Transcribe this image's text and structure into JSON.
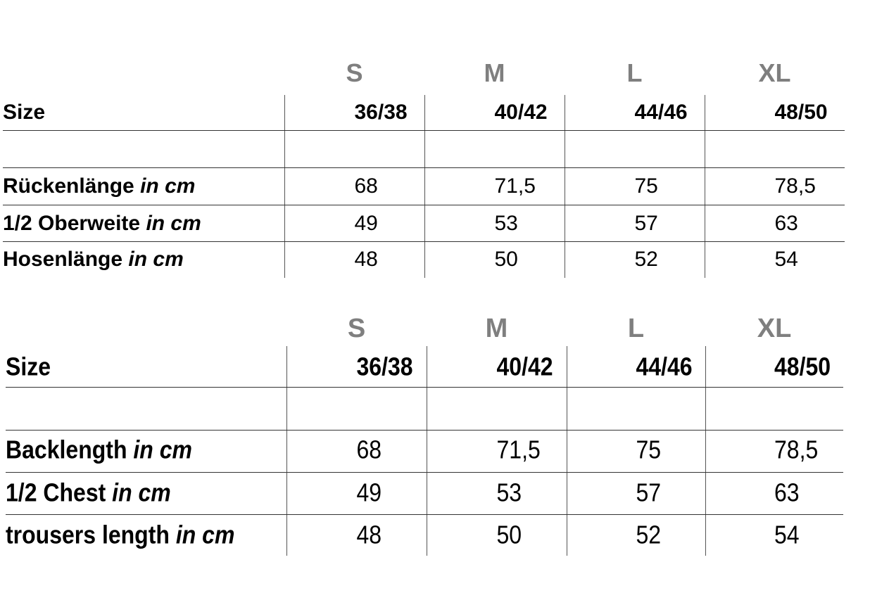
{
  "tables": [
    {
      "size_letters": [
        "S",
        "M",
        "L",
        "XL"
      ],
      "size_label": "Size",
      "size_numbers": [
        "36/38",
        "40/42",
        "44/46",
        "48/50"
      ],
      "rows": [
        {
          "label": "Rückenlänge",
          "unit": "in cm",
          "values": [
            "68",
            "71,5",
            "75",
            "78,5"
          ]
        },
        {
          "label": "1/2 Oberweite",
          "unit": "in cm",
          "values": [
            "49",
            "53",
            "57",
            "63"
          ]
        },
        {
          "label": "Hosenlänge",
          "unit": "in cm",
          "values": [
            "48",
            "50",
            "52",
            "54"
          ]
        }
      ]
    },
    {
      "size_letters": [
        "S",
        "M",
        "L",
        "XL"
      ],
      "size_label": "Size",
      "size_numbers": [
        "36/38",
        "40/42",
        "44/46",
        "48/50"
      ],
      "rows": [
        {
          "label": "Backlength",
          "unit": "in cm",
          "values": [
            "68",
            "71,5",
            "75",
            "78,5"
          ]
        },
        {
          "label": "1/2 Chest",
          "unit": "in cm",
          "values": [
            "49",
            "53",
            "57",
            "63"
          ]
        },
        {
          "label": "trousers length",
          "unit": "in cm",
          "values": [
            "48",
            "50",
            "52",
            "54"
          ]
        }
      ]
    }
  ],
  "colors": {
    "size_letter": "#7f7f7f",
    "text": "#000000"
  }
}
